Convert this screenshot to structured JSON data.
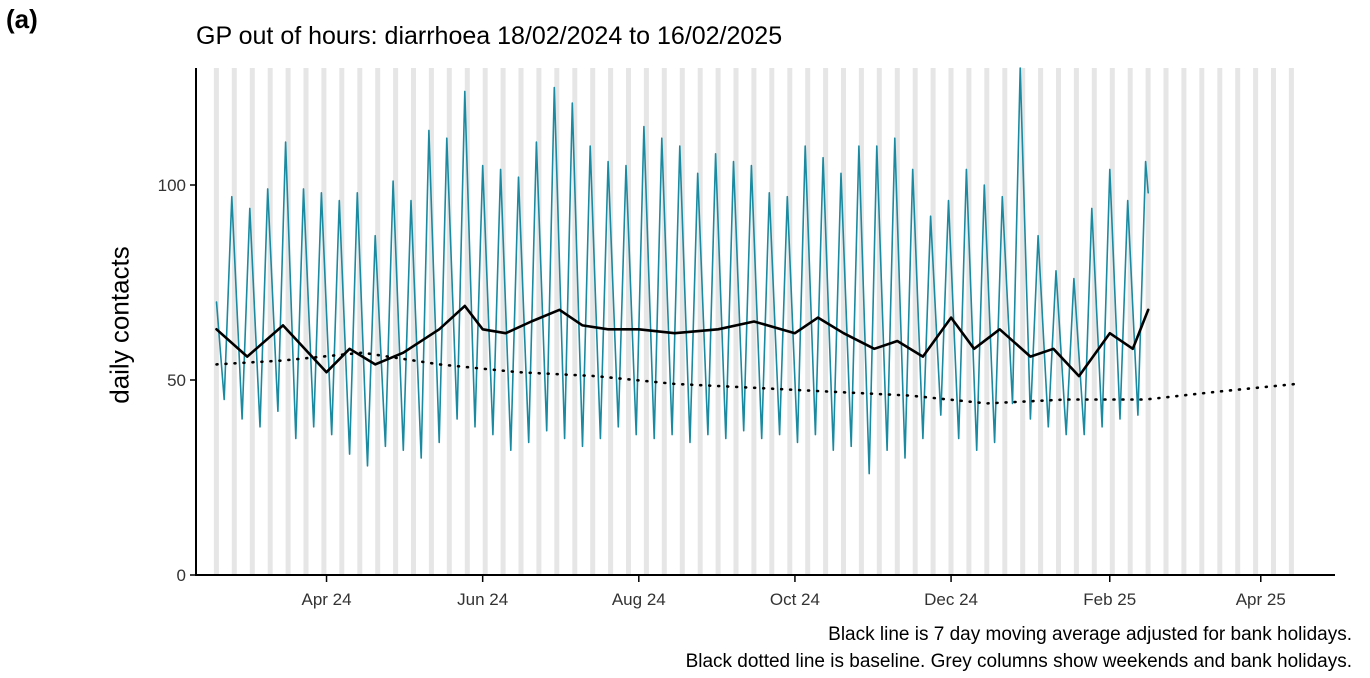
{
  "panel_label": "(a)",
  "chart_data": {
    "type": "line",
    "title": "GP out of hours: diarrhoea 18/02/2024 to 16/02/2025",
    "xlabel": "",
    "ylabel": "daily contacts",
    "ylim": [
      0,
      130
    ],
    "xlim": [
      "2024-02-10",
      "2025-04-30"
    ],
    "yticks": [
      0,
      50,
      100
    ],
    "xticks": [
      {
        "date": "2024-04-01",
        "label": "Apr 24"
      },
      {
        "date": "2024-06-01",
        "label": "Jun 24"
      },
      {
        "date": "2024-08-01",
        "label": "Aug 24"
      },
      {
        "date": "2024-10-01",
        "label": "Oct 24"
      },
      {
        "date": "2024-12-01",
        "label": "Dec 24"
      },
      {
        "date": "2025-02-01",
        "label": "Feb 25"
      },
      {
        "date": "2025-04-01",
        "label": "Apr 25"
      }
    ],
    "grid": false,
    "series": [
      {
        "key": "daily",
        "color": "#1a8aa0",
        "style": "solid",
        "x": [
          "2024-02-18",
          "2024-02-21",
          "2024-02-24",
          "2024-02-28",
          "2024-03-02",
          "2024-03-06",
          "2024-03-09",
          "2024-03-13",
          "2024-03-16",
          "2024-03-20",
          "2024-03-23",
          "2024-03-27",
          "2024-03-30",
          "2024-04-03",
          "2024-04-06",
          "2024-04-10",
          "2024-04-13",
          "2024-04-17",
          "2024-04-20",
          "2024-04-24",
          "2024-04-27",
          "2024-05-01",
          "2024-05-04",
          "2024-05-08",
          "2024-05-11",
          "2024-05-15",
          "2024-05-18",
          "2024-05-22",
          "2024-05-25",
          "2024-05-29",
          "2024-06-01",
          "2024-06-05",
          "2024-06-08",
          "2024-06-12",
          "2024-06-15",
          "2024-06-19",
          "2024-06-22",
          "2024-06-26",
          "2024-06-29",
          "2024-07-03",
          "2024-07-06",
          "2024-07-10",
          "2024-07-13",
          "2024-07-17",
          "2024-07-20",
          "2024-07-24",
          "2024-07-27",
          "2024-07-31",
          "2024-08-03",
          "2024-08-07",
          "2024-08-10",
          "2024-08-14",
          "2024-08-17",
          "2024-08-21",
          "2024-08-24",
          "2024-08-28",
          "2024-08-31",
          "2024-09-04",
          "2024-09-07",
          "2024-09-11",
          "2024-09-14",
          "2024-09-18",
          "2024-09-21",
          "2024-09-25",
          "2024-09-28",
          "2024-10-02",
          "2024-10-05",
          "2024-10-09",
          "2024-10-12",
          "2024-10-16",
          "2024-10-19",
          "2024-10-23",
          "2024-10-26",
          "2024-10-30",
          "2024-11-02",
          "2024-11-06",
          "2024-11-09",
          "2024-11-13",
          "2024-11-16",
          "2024-11-20",
          "2024-11-23",
          "2024-11-27",
          "2024-11-30",
          "2024-12-04",
          "2024-12-07",
          "2024-12-11",
          "2024-12-14",
          "2024-12-18",
          "2024-12-21",
          "2024-12-25",
          "2024-12-28",
          "2025-01-01",
          "2025-01-04",
          "2025-01-08",
          "2025-01-11",
          "2025-01-15",
          "2025-01-18",
          "2025-01-22",
          "2025-01-25",
          "2025-01-29",
          "2025-02-01",
          "2025-02-05",
          "2025-02-08",
          "2025-02-12",
          "2025-02-15",
          "2025-02-16"
        ],
        "values": [
          70,
          45,
          97,
          40,
          94,
          38,
          99,
          42,
          111,
          35,
          99,
          38,
          98,
          36,
          96,
          31,
          98,
          28,
          87,
          33,
          101,
          32,
          96,
          30,
          114,
          34,
          112,
          40,
          124,
          38,
          105,
          36,
          104,
          32,
          102,
          34,
          111,
          37,
          125,
          35,
          121,
          33,
          110,
          35,
          106,
          38,
          105,
          36,
          115,
          35,
          112,
          36,
          110,
          34,
          103,
          36,
          108,
          35,
          106,
          37,
          105,
          35,
          98,
          36,
          97,
          34,
          110,
          36,
          107,
          32,
          103,
          33,
          110,
          26,
          110,
          32,
          112,
          30,
          104,
          35,
          92,
          41,
          96,
          35,
          104,
          32,
          100,
          34,
          97,
          44,
          130,
          40,
          87,
          38,
          78,
          36,
          76,
          36,
          94,
          38,
          104,
          40,
          96,
          41,
          106,
          98
        ]
      },
      {
        "key": "moving-average",
        "color": "#000000",
        "style": "solid",
        "x": [
          "2024-02-18",
          "2024-03-01",
          "2024-03-15",
          "2024-04-01",
          "2024-04-10",
          "2024-04-20",
          "2024-05-01",
          "2024-05-15",
          "2024-05-25",
          "2024-06-01",
          "2024-06-10",
          "2024-06-20",
          "2024-07-01",
          "2024-07-10",
          "2024-07-20",
          "2024-08-01",
          "2024-08-15",
          "2024-09-01",
          "2024-09-15",
          "2024-10-01",
          "2024-10-10",
          "2024-10-20",
          "2024-11-01",
          "2024-11-10",
          "2024-11-20",
          "2024-12-01",
          "2024-12-10",
          "2024-12-20",
          "2025-01-01",
          "2025-01-10",
          "2025-01-20",
          "2025-02-01",
          "2025-02-10",
          "2025-02-16"
        ],
        "values": [
          63,
          56,
          64,
          52,
          58,
          54,
          57,
          63,
          69,
          63,
          62,
          65,
          68,
          64,
          63,
          63,
          62,
          63,
          65,
          62,
          66,
          62,
          58,
          60,
          56,
          66,
          58,
          63,
          56,
          58,
          51,
          62,
          58,
          68
        ]
      },
      {
        "key": "baseline",
        "color": "#000000",
        "style": "dotted",
        "x": [
          "2024-02-18",
          "2024-03-15",
          "2024-04-15",
          "2024-05-15",
          "2024-06-15",
          "2024-07-15",
          "2024-08-15",
          "2024-09-15",
          "2024-10-15",
          "2024-11-15",
          "2024-12-15",
          "2025-01-15",
          "2025-02-15",
          "2025-03-15",
          "2025-04-15"
        ],
        "values": [
          54,
          55,
          57,
          54,
          52,
          51,
          49,
          48,
          47,
          46,
          44,
          45,
          45,
          47,
          49
        ]
      }
    ],
    "shaded_columns": "weekends and bank holidays",
    "shaded_color": "#e6e6e6"
  },
  "captions": {
    "line1": "Black line is 7 day moving average adjusted for bank holidays.",
    "line2": "Black dotted line is baseline. Grey columns show weekends and bank holidays."
  }
}
